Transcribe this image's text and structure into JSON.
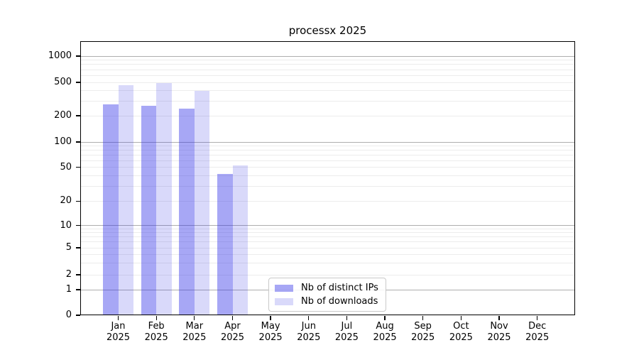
{
  "chart_data": {
    "type": "bar",
    "title": "processx 2025",
    "year_label": "2025",
    "categories": [
      "Jan",
      "Feb",
      "Mar",
      "Apr",
      "May",
      "Jun",
      "Jul",
      "Aug",
      "Sep",
      "Oct",
      "Nov",
      "Dec"
    ],
    "series": [
      {
        "name": "Nb of distinct IPs",
        "color": "rgba(45,45,230,0.42)",
        "values": [
          272,
          265,
          242,
          42,
          null,
          null,
          null,
          null,
          null,
          null,
          null,
          null
        ]
      },
      {
        "name": "Nb of downloads",
        "color": "rgba(45,45,230,0.18)",
        "values": [
          460,
          495,
          393,
          53,
          null,
          null,
          null,
          null,
          null,
          null,
          null,
          null
        ]
      }
    ],
    "yscale": "symlog",
    "yticks": [
      0,
      1,
      2,
      5,
      10,
      20,
      50,
      100,
      200,
      500,
      1000
    ],
    "ylim": [
      0,
      1500
    ],
    "xlabel": "",
    "ylabel": "",
    "grid": "horizontal, log minor lines, major lines at powers of 10",
    "legend_position": "lower center"
  },
  "colors": {
    "background": "#ffffff",
    "axis": "#000000",
    "text": "#000000",
    "major_grid": "#aeaeae",
    "minor_grid": "#ececec"
  }
}
